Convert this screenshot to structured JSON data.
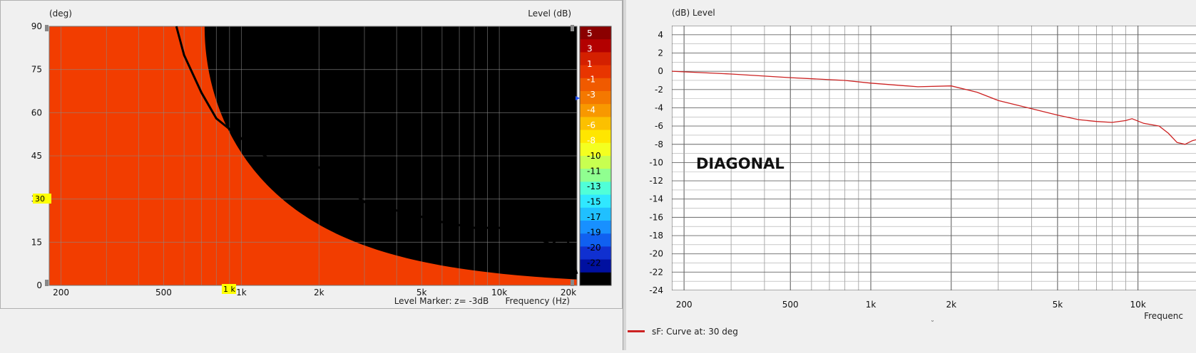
{
  "chart_data": [
    {
      "type": "heatmap",
      "title": "",
      "xlabel": "Frequency  (Hz)",
      "ylabel": "(deg)",
      "colorbar_label": "Level  (dB)",
      "x_scale": "log",
      "xlim": [
        180,
        20000
      ],
      "ylim": [
        0,
        90
      ],
      "x_ticks": [
        {
          "v": 200,
          "label": "200"
        },
        {
          "v": 500,
          "label": "500"
        },
        {
          "v": 1000,
          "label": "1k"
        },
        {
          "v": 2000,
          "label": "2k"
        },
        {
          "v": 5000,
          "label": "5k"
        },
        {
          "v": 10000,
          "label": "10k"
        },
        {
          "v": 20000,
          "label": "20k"
        }
      ],
      "y_ticks": [
        0,
        15,
        30,
        45,
        60,
        75,
        90
      ],
      "colorbar_ticks": [
        "5",
        "3",
        "1",
        "-1",
        "-3",
        "-4",
        "-6",
        "-8",
        "-10",
        "-11",
        "-13",
        "-15",
        "-17",
        "-19",
        "-20",
        "-22",
        "-24"
      ],
      "colorbar_colors": [
        "#8b0000",
        "#b30000",
        "#d42000",
        "#e83500",
        "#f05a00",
        "#f47800",
        "#f89800",
        "#fcc000",
        "#ffe600",
        "#f4ff20",
        "#c8ff50",
        "#90ff90",
        "#50ffd8",
        "#30e8ff",
        "#20c0ff",
        "#1890ff",
        "#1060f0",
        "#1030d0",
        "#0010a0",
        "#000000"
      ],
      "level_marker_text": "Level Marker:  z= -3dB",
      "level_marker_curve": [
        {
          "f": 560,
          "deg": 90
        },
        {
          "f": 600,
          "deg": 80
        },
        {
          "f": 700,
          "deg": 67
        },
        {
          "f": 800,
          "deg": 58
        },
        {
          "f": 1000,
          "deg": 51
        },
        {
          "f": 1300,
          "deg": 43.5
        },
        {
          "f": 2000,
          "deg": 41
        },
        {
          "f": 3000,
          "deg": 29
        },
        {
          "f": 4000,
          "deg": 26
        },
        {
          "f": 6000,
          "deg": 22
        },
        {
          "f": 8000,
          "deg": 20
        },
        {
          "f": 10000,
          "deg": 20
        },
        {
          "f": 13000,
          "deg": 18
        },
        {
          "f": 16000,
          "deg": 14
        },
        {
          "f": 18000,
          "deg": 20
        },
        {
          "f": 19000,
          "deg": 10
        },
        {
          "f": 20000,
          "deg": 4
        }
      ],
      "cursor": {
        "x_label": "1 k",
        "y_label": "30"
      },
      "grid": true
    },
    {
      "type": "line",
      "title": "",
      "xlabel": "Frequenc",
      "ylabel": "(dB)  Level",
      "x_scale": "log",
      "xlim": [
        180,
        17000
      ],
      "ylim": [
        -24,
        5
      ],
      "x_ticks": [
        {
          "v": 200,
          "label": "200"
        },
        {
          "v": 500,
          "label": "500"
        },
        {
          "v": 1000,
          "label": "1k"
        },
        {
          "v": 2000,
          "label": "2k"
        },
        {
          "v": 5000,
          "label": "5k"
        },
        {
          "v": 10000,
          "label": "10k"
        }
      ],
      "y_ticks": [
        4,
        2,
        0,
        -2,
        -4,
        -6,
        -8,
        -10,
        -12,
        -14,
        -16,
        -18,
        -20,
        -22,
        -24
      ],
      "annotation": "DIAGONAL",
      "series": [
        {
          "name": "sF: Curve at: 30 deg",
          "color": "#cc2222",
          "points": [
            [
              180,
              0
            ],
            [
              300,
              -0.3
            ],
            [
              500,
              -0.7
            ],
            [
              800,
              -1.0
            ],
            [
              1000,
              -1.3
            ],
            [
              1500,
              -1.7
            ],
            [
              2000,
              -1.6
            ],
            [
              2500,
              -2.3
            ],
            [
              3000,
              -3.2
            ],
            [
              4000,
              -4.1
            ],
            [
              5000,
              -4.8
            ],
            [
              6000,
              -5.3
            ],
            [
              7000,
              -5.5
            ],
            [
              8000,
              -5.6
            ],
            [
              9000,
              -5.4
            ],
            [
              9500,
              -5.2
            ],
            [
              10500,
              -5.7
            ],
            [
              12000,
              -6.0
            ],
            [
              13000,
              -6.8
            ],
            [
              14000,
              -7.8
            ],
            [
              15000,
              -8.0
            ],
            [
              16000,
              -7.6
            ],
            [
              17000,
              -7.4
            ]
          ]
        }
      ],
      "grid": true
    }
  ]
}
